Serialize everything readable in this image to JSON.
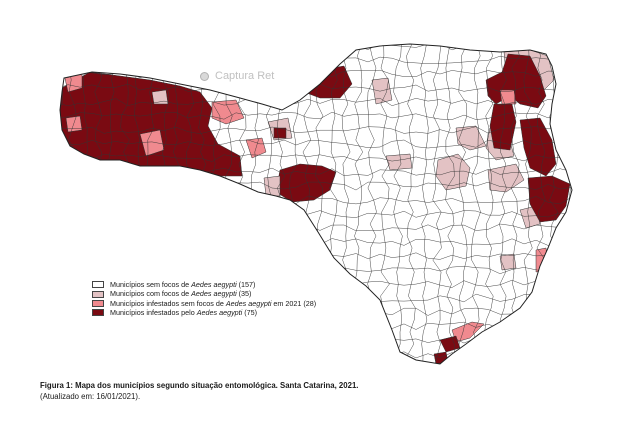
{
  "map": {
    "colors": {
      "no_foci": "#ffffff",
      "with_foci": "#e3c2c4",
      "infested_no_foci": "#f08a8f",
      "infested": "#7a0a12",
      "border": "#333333"
    }
  },
  "legend": [
    {
      "pre": "Municípios sem focos de ",
      "italic": "Aedes aegypti",
      "post": " (157)",
      "color": "#ffffff"
    },
    {
      "pre": "Municípios com focos de ",
      "italic": "Aedes aegypti",
      "post": " (35)",
      "color": "#e3c2c4"
    },
    {
      "pre": "Municípios infestados sem focos de ",
      "italic": "Aedes aegypti",
      "post": " em 2021 (28)",
      "color": "#f08a8f"
    },
    {
      "pre": "Municípios infestados pelo ",
      "italic": "Aedes aegypti",
      "post": " (75)",
      "color": "#7a0a12"
    }
  ],
  "overlay": {
    "capture_label": "Captura Ret"
  },
  "caption": {
    "title": "Figura 1: Mapa dos municípios segundo situação entomológica. Santa Catarina, 2021.",
    "updated": "(Atualizado em: 16/01/2021)."
  }
}
